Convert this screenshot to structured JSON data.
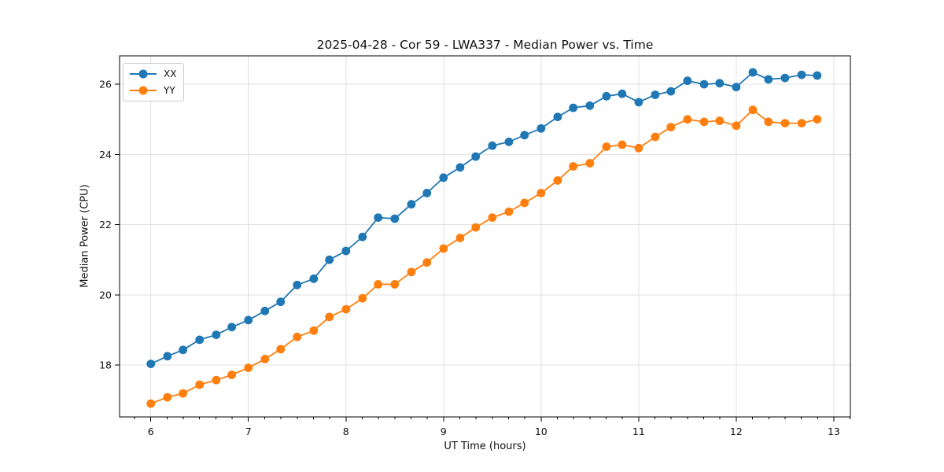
{
  "chart_data": {
    "type": "line",
    "title": "2025-04-28 - Cor 59 - LWA337 - Median Power vs. Time",
    "xlabel": "UT Time (hours)",
    "ylabel": "Median Power (CPU)",
    "xlim": [
      5.68,
      13.17
    ],
    "ylim": [
      16.52,
      26.81
    ],
    "x_ticks": [
      6,
      7,
      8,
      9,
      10,
      11,
      12,
      13
    ],
    "y_ticks": [
      18,
      20,
      22,
      24,
      26
    ],
    "x_minor_tick_step": 0.16667,
    "grid": true,
    "grid_color": "#e0e0e0",
    "spine_color": "#000000",
    "background_color": "#ffffff",
    "legend_position": "upper-left",
    "marker": "circle",
    "x": [
      6.0,
      6.17,
      6.33,
      6.5,
      6.67,
      6.83,
      7.0,
      7.17,
      7.33,
      7.5,
      7.67,
      7.83,
      8.0,
      8.17,
      8.33,
      8.5,
      8.67,
      8.83,
      9.0,
      9.17,
      9.33,
      9.5,
      9.67,
      9.83,
      10.0,
      10.17,
      10.33,
      10.5,
      10.67,
      10.83,
      11.0,
      11.17,
      11.33,
      11.5,
      11.67,
      11.83,
      12.0,
      12.17,
      12.33,
      12.5,
      12.67,
      12.83
    ],
    "series": [
      {
        "name": "XX",
        "color": "#1f77b4",
        "values": [
          18.03,
          18.25,
          18.43,
          18.72,
          18.86,
          19.08,
          19.28,
          19.54,
          19.8,
          20.28,
          20.46,
          21.0,
          21.25,
          21.65,
          22.2,
          22.17,
          22.58,
          22.9,
          23.34,
          23.63,
          23.94,
          24.25,
          24.36,
          24.55,
          24.74,
          25.07,
          25.33,
          25.39,
          25.66,
          25.73,
          25.49,
          25.7,
          25.8,
          26.1,
          26.0,
          26.03,
          25.92,
          26.34,
          26.14,
          26.18,
          26.27,
          26.25
        ]
      },
      {
        "name": "YY",
        "color": "#ff7f0e",
        "values": [
          16.9,
          17.08,
          17.19,
          17.44,
          17.57,
          17.72,
          17.92,
          18.17,
          18.45,
          18.8,
          18.98,
          19.37,
          19.59,
          19.9,
          20.3,
          20.3,
          20.65,
          20.92,
          21.32,
          21.62,
          21.92,
          22.2,
          22.37,
          22.62,
          22.9,
          23.26,
          23.66,
          23.75,
          24.22,
          24.28,
          24.18,
          24.5,
          24.78,
          25.0,
          24.93,
          24.96,
          24.82,
          25.27,
          24.93,
          24.89,
          24.89,
          25.0
        ]
      }
    ]
  }
}
